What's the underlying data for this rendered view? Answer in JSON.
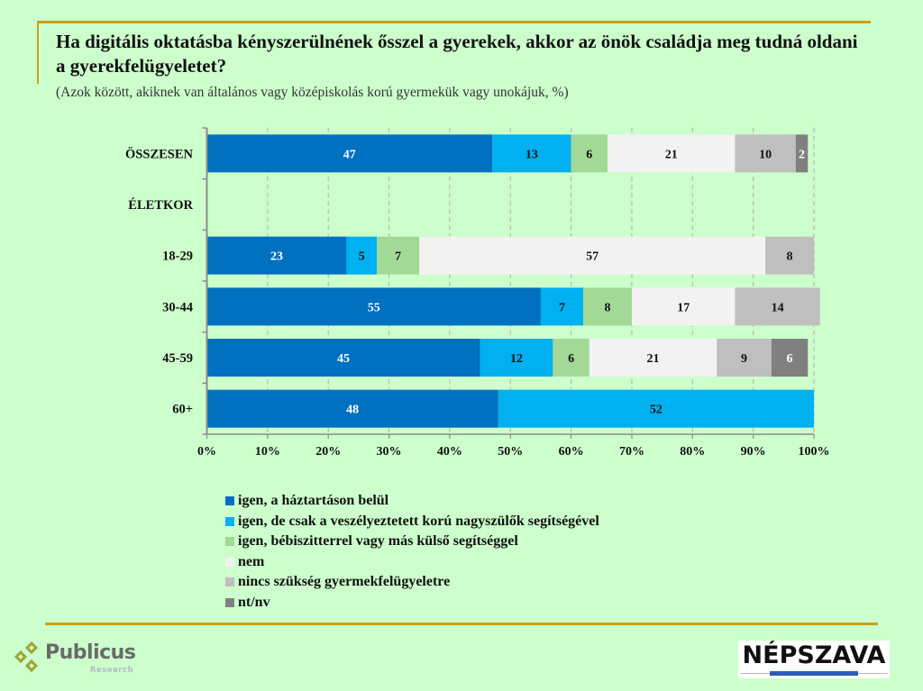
{
  "title": "Ha digitális oktatásba kényszerülnének ősszel a gyerekek, akkor az önök családja meg tudná oldani a gyerekfelügyeletet?",
  "subtitle": "(Azok között, akiknek van általános vagy középiskolás korú gyermekük vagy unokájuk, %)",
  "logos": {
    "left_name": "Publicus",
    "left_sub": "Research",
    "right_name": "NÉPSZAVA"
  },
  "colors": {
    "background": "#ccffcc",
    "frame_line": "#c9a21b"
  },
  "chart_data": {
    "type": "bar",
    "orientation": "horizontal",
    "stacked": "percent",
    "title": "Ha digitális oktatásba kényszerülnének ősszel a gyerekek, akkor az önök családja meg tudná oldani a gyerekfelügyeletet?",
    "subtitle": "(Azok között, akiknek van általános vagy középiskolás korú gyermekük vagy unokájuk, %)",
    "xlabel": "",
    "ylabel": "",
    "xlim": [
      0,
      100
    ],
    "x_ticks": [
      "0%",
      "10%",
      "20%",
      "30%",
      "40%",
      "50%",
      "60%",
      "70%",
      "80%",
      "90%",
      "100%"
    ],
    "grid": "vertical-dashed",
    "legend_position": "bottom",
    "categories": [
      "ÖSSZESEN",
      "ÉLETKOR",
      "18-29",
      "30-44",
      "45-59",
      "60+"
    ],
    "category_bold": [
      true,
      true,
      false,
      false,
      false,
      false
    ],
    "series": [
      {
        "name": "igen, a háztartáson belül",
        "color": "#0070c0",
        "label_color": "#ffffff",
        "values": [
          47,
          null,
          23,
          55,
          45,
          48
        ]
      },
      {
        "name": "igen, de csak a veszélyeztetett korú nagyszülők segítségével",
        "color": "#00b0f0",
        "label_color": "#111111",
        "values": [
          13,
          null,
          5,
          7,
          12,
          52
        ]
      },
      {
        "name": "igen, bébiszitterrel vagy más külső segítséggel",
        "color": "#a3d997",
        "label_color": "#111111",
        "values": [
          6,
          null,
          7,
          8,
          6,
          null
        ]
      },
      {
        "name": "nem",
        "color": "#f2f2f2",
        "label_color": "#111111",
        "values": [
          21,
          null,
          57,
          17,
          21,
          null
        ]
      },
      {
        "name": "nincs szükség gyermekfelügyeletre",
        "color": "#bfbfbf",
        "label_color": "#111111",
        "values": [
          10,
          null,
          8,
          14,
          9,
          null
        ]
      },
      {
        "name": "nt/nv",
        "color": "#808080",
        "label_color": "#ffffff",
        "values": [
          2,
          null,
          null,
          null,
          6,
          null
        ]
      }
    ]
  }
}
